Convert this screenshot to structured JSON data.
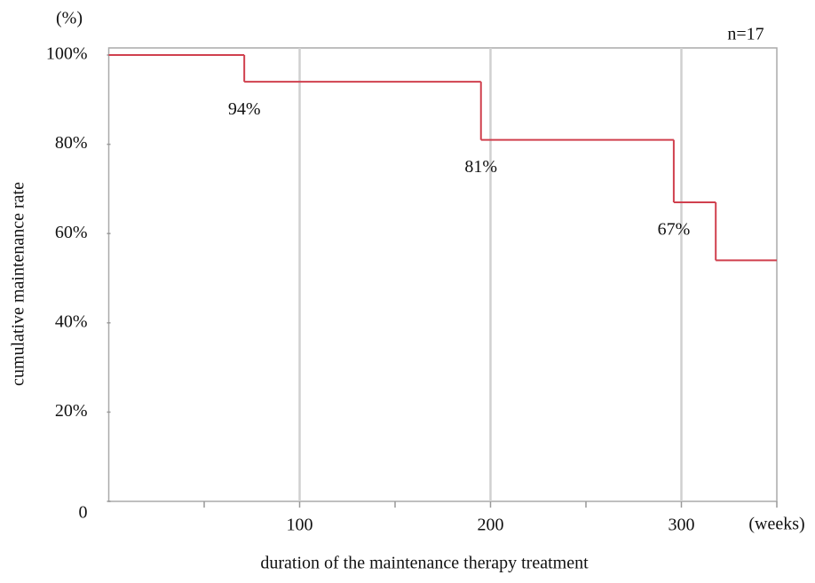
{
  "chart_data": {
    "type": "step",
    "y_unit": "(%)",
    "x_unit": "(weeks)",
    "x_label": "duration of the maintenance therapy treatment",
    "y_label": "cumulative maintenance rate",
    "annotation": "n=17",
    "x": [
      0,
      71,
      195,
      296,
      318,
      350
    ],
    "series": [
      {
        "color": "#d0404e",
        "values": [
          100,
          94,
          81,
          67,
          54,
          54
        ],
        "value_labels": [
          null,
          "94%",
          "81%",
          "67%",
          null,
          null
        ]
      }
    ],
    "xlim": [
      0,
      350
    ],
    "ylim": [
      0,
      100
    ],
    "xticks": [
      100,
      200,
      300
    ],
    "xminorticks": [
      50,
      150,
      250,
      350
    ],
    "yticks": [
      0,
      {
        "value": 20,
        "label": "20%"
      },
      {
        "value": 40,
        "label": "40%"
      },
      {
        "value": 60,
        "label": "60%"
      },
      {
        "value": 80,
        "label": "80%"
      },
      {
        "value": 100,
        "label": "100%"
      }
    ],
    "grid": "x"
  }
}
